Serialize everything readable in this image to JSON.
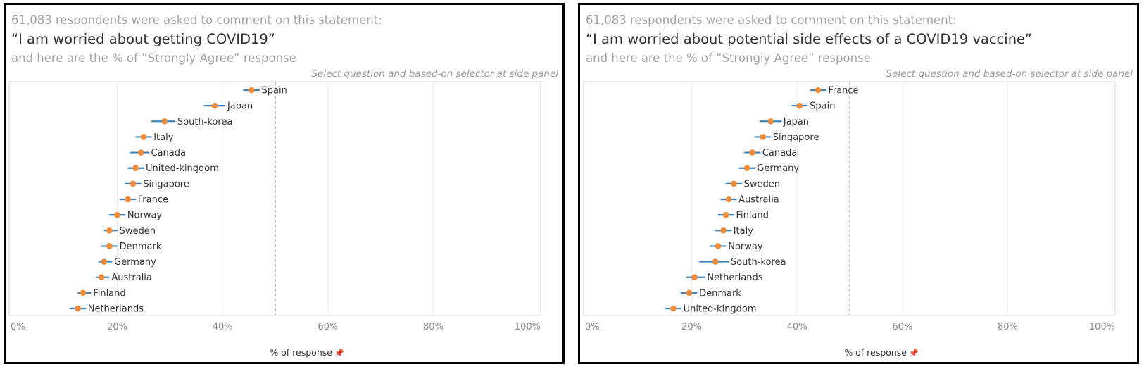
{
  "panels": [
    {
      "intro": "61,083 respondents were asked to comment on this statement:",
      "question": "“I am worried about getting COVID19”",
      "subtitle": "and here are the % of ”Strongly Agree” response",
      "note": "Select question and based-on selector at side panel",
      "xaxis_title": "% of response"
    },
    {
      "intro": "61,083 respondents were asked to comment on this statement:",
      "question": "“I am worried about potential side effects of a COVID19 vaccine”",
      "subtitle": "and here are the % of ”Strongly Agree” response",
      "note": "Select question and based-on selector at side panel",
      "xaxis_title": "% of response"
    }
  ],
  "icons": {
    "pin": "pin-icon"
  },
  "colors": {
    "point": "#ef8a3a",
    "interval": "#3b82b8",
    "interval_light": "#9ec5e2",
    "reference": "#9a9a9a",
    "grid": "#ebebeb"
  },
  "chart_data": [
    {
      "type": "dot-interval",
      "xlabel": "% of response",
      "xlim": [
        0,
        100
      ],
      "xticks": [
        "0%",
        "20%",
        "40%",
        "60%",
        "80%",
        "100%"
      ],
      "reference_line": 50,
      "categories": [
        "Spain",
        "Japan",
        "South-korea",
        "Italy",
        "Canada",
        "United-kingdom",
        "Singapore",
        "France",
        "Norway",
        "Sweden",
        "Denmark",
        "Germany",
        "Australia",
        "Finland",
        "Netherlands"
      ],
      "values": [
        45.5,
        38.5,
        29,
        25,
        24.5,
        23.5,
        23,
        22,
        20,
        18.5,
        18.5,
        17.5,
        17,
        13.5,
        12.5
      ],
      "ci_low": [
        44,
        36.5,
        26.5,
        23.5,
        22.5,
        22,
        21.5,
        20.5,
        18.5,
        17.5,
        17,
        16.5,
        16,
        12.5,
        11
      ],
      "ci_high": [
        47,
        40.5,
        31,
        26.5,
        26,
        25,
        24.5,
        23.5,
        21.5,
        20,
        20,
        19,
        18.5,
        15,
        14
      ]
    },
    {
      "type": "dot-interval",
      "xlabel": "% of response",
      "xlim": [
        0,
        100
      ],
      "xticks": [
        "0%",
        "20%",
        "40%",
        "60%",
        "80%",
        "100%"
      ],
      "reference_line": 50,
      "categories": [
        "France",
        "Spain",
        "Japan",
        "Singapore",
        "Canada",
        "Germany",
        "Sweden",
        "Australia",
        "Finland",
        "Italy",
        "Norway",
        "South-korea",
        "Netherlands",
        "Denmark",
        "United-kingdom"
      ],
      "values": [
        44,
        40.5,
        35,
        33.5,
        31.5,
        30.5,
        28,
        27,
        26.5,
        26,
        25,
        24.5,
        20.5,
        19.5,
        16.5
      ],
      "ci_low": [
        42.5,
        39,
        33,
        32,
        30,
        29,
        26.5,
        25.5,
        25,
        24.5,
        23.5,
        21.5,
        19,
        18,
        15
      ],
      "ci_high": [
        45.5,
        42,
        37,
        35,
        33,
        32,
        29.5,
        28.5,
        28,
        27.5,
        26.5,
        27,
        22.5,
        21,
        18
      ]
    }
  ]
}
